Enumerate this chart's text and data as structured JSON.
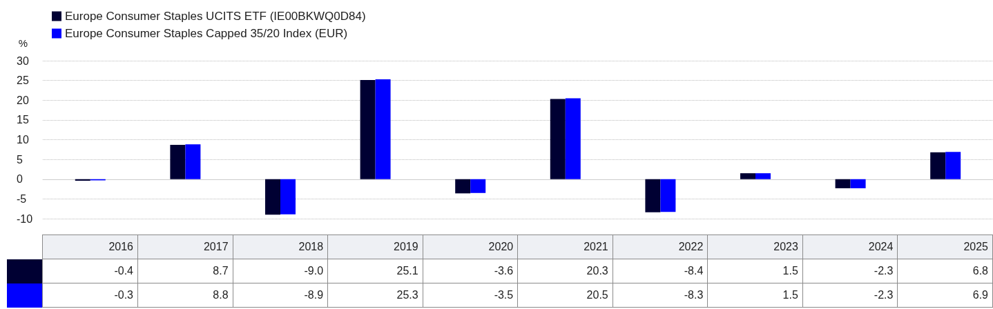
{
  "chart_data": {
    "type": "bar",
    "ylabel": "%",
    "categories": [
      "2016",
      "2017",
      "2018",
      "2019",
      "2020",
      "2021",
      "2022",
      "2023",
      "2024",
      "2025"
    ],
    "series": [
      {
        "name": "Europe Consumer Staples UCITS ETF (IE00BKWQ0D84)",
        "color": "#000033",
        "values": [
          -0.4,
          8.7,
          -9.0,
          25.1,
          -3.6,
          20.3,
          -8.4,
          1.5,
          -2.3,
          6.8
        ],
        "value_labels": [
          "-0.4",
          "8.7",
          "-9.0",
          "25.1",
          "-3.6",
          "20.3",
          "-8.4",
          "1.5",
          "-2.3",
          "6.8"
        ]
      },
      {
        "name": "Europe Consumer Staples Capped 35/20 Index (EUR)",
        "color": "#0000ff",
        "values": [
          -0.3,
          8.8,
          -8.9,
          25.3,
          -3.5,
          20.5,
          -8.3,
          1.5,
          -2.3,
          6.9
        ],
        "value_labels": [
          "-0.3",
          "8.8",
          "-8.9",
          "25.3",
          "-3.5",
          "20.5",
          "-8.3",
          "1.5",
          "-2.3",
          "6.9"
        ]
      }
    ],
    "ylim": [
      -10,
      30
    ],
    "yticks": [
      -10,
      -5,
      0,
      5,
      10,
      15,
      20,
      25,
      30
    ],
    "grid": "y",
    "legend": "top left"
  }
}
